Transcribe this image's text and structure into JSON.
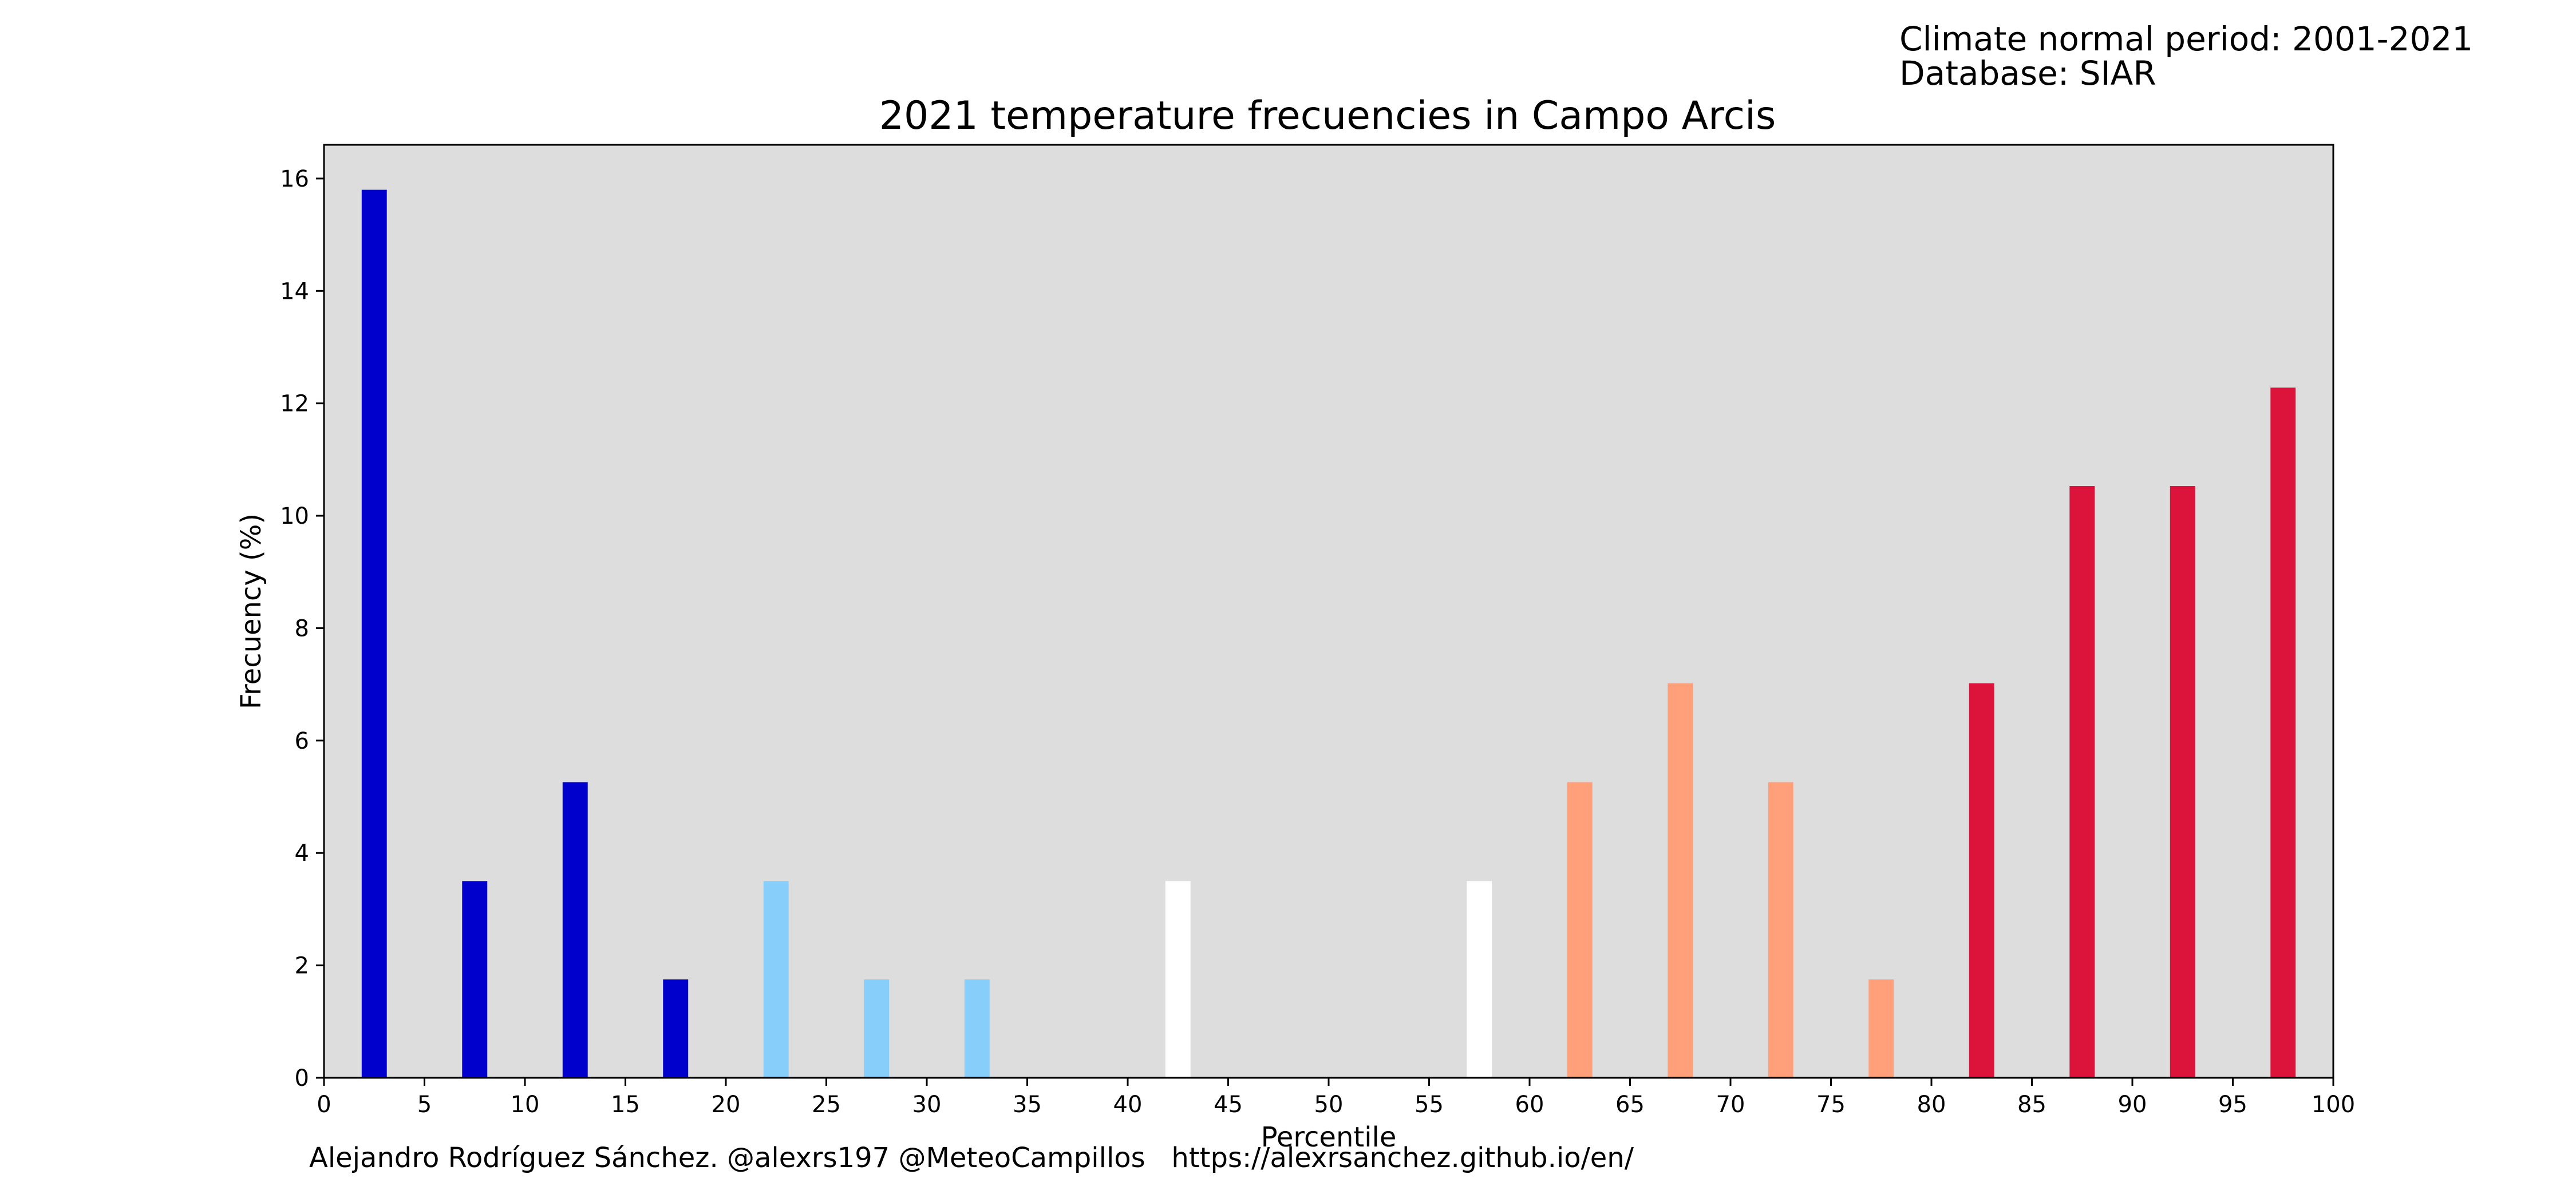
{
  "header": {
    "period_line": "Climate normal period: 2001-2021",
    "database_line": "Database: SIAR"
  },
  "footer": {
    "credit": "Alejandro Rodríguez Sánchez. @alexrs197 @MeteoCampillos   https://alexrsanchez.github.io/en/"
  },
  "colors": {
    "plot_background": "#dddddd",
    "very_cold": "#0000cd",
    "cold": "#87cefa",
    "normal": "#ffffff",
    "warm": "#ffa07a",
    "very_warm": "#dc143c"
  },
  "chart_data": {
    "type": "bar",
    "title": "2021 temperature frecuencies in Campo Arcis",
    "xlabel": "Percentile",
    "ylabel": "Frecuency (%)",
    "xlim": [
      0,
      100
    ],
    "ylim": [
      0,
      16.6
    ],
    "xticks": [
      0,
      5,
      10,
      15,
      20,
      25,
      30,
      35,
      40,
      45,
      50,
      55,
      60,
      65,
      70,
      75,
      80,
      85,
      90,
      95,
      100
    ],
    "yticks": [
      0,
      2,
      4,
      6,
      8,
      10,
      12,
      14,
      16
    ],
    "grid": false,
    "legend": false,
    "bar_width": 1.25,
    "bars": [
      {
        "x": 2.5,
        "value": 15.8,
        "color": "#0000cd"
      },
      {
        "x": 7.5,
        "value": 3.5,
        "color": "#0000cd"
      },
      {
        "x": 12.5,
        "value": 5.26,
        "color": "#0000cd"
      },
      {
        "x": 17.5,
        "value": 1.75,
        "color": "#0000cd"
      },
      {
        "x": 22.5,
        "value": 3.5,
        "color": "#87cefa"
      },
      {
        "x": 27.5,
        "value": 1.75,
        "color": "#87cefa"
      },
      {
        "x": 32.5,
        "value": 1.75,
        "color": "#87cefa"
      },
      {
        "x": 37.5,
        "value": 0,
        "color": "#ffffff"
      },
      {
        "x": 42.5,
        "value": 3.5,
        "color": "#ffffff"
      },
      {
        "x": 47.5,
        "value": 0,
        "color": "#ffffff"
      },
      {
        "x": 52.5,
        "value": 0,
        "color": "#ffffff"
      },
      {
        "x": 57.5,
        "value": 3.5,
        "color": "#ffffff"
      },
      {
        "x": 62.5,
        "value": 5.26,
        "color": "#ffa07a"
      },
      {
        "x": 67.5,
        "value": 7.02,
        "color": "#ffa07a"
      },
      {
        "x": 72.5,
        "value": 5.26,
        "color": "#ffa07a"
      },
      {
        "x": 77.5,
        "value": 1.75,
        "color": "#ffa07a"
      },
      {
        "x": 82.5,
        "value": 7.02,
        "color": "#dc143c"
      },
      {
        "x": 87.5,
        "value": 10.53,
        "color": "#dc143c"
      },
      {
        "x": 92.5,
        "value": 10.53,
        "color": "#dc143c"
      },
      {
        "x": 97.5,
        "value": 12.28,
        "color": "#dc143c"
      }
    ]
  }
}
